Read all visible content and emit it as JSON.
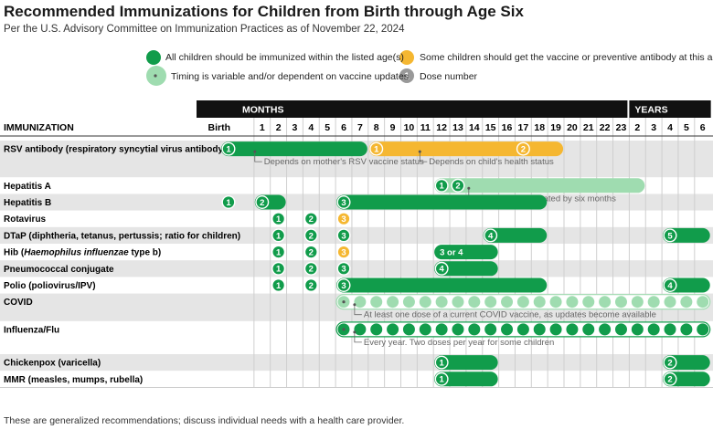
{
  "title": "Recommended Immunizations for Children from Birth through Age Six",
  "subtitle": "Per the U.S. Advisory Committee on Immunization Practices as of November 22, 2024",
  "legend": {
    "all_children": "All children should be immunized within the listed age(s)",
    "some_children": "Some children should get the vaccine or preventive antibody at this age",
    "variable_timing": "Timing is variable and/or dependent on vaccine updates",
    "dose_number": "Dose number",
    "dose_marker": "1"
  },
  "footnote": "These are generalized recommendations; discuss individual needs with a health care provider.",
  "colors": {
    "green": "#119c4b",
    "light_green": "#9fdcb0",
    "orange": "#f5b731",
    "dark": "#111111",
    "band": "#e5e5e5",
    "grid": "#cfcfcf",
    "note": "#666666"
  },
  "chart_data": {
    "type": "table",
    "header": {
      "immunization": "IMMUNIZATION",
      "months": "MONTHS",
      "years": "YEARS"
    },
    "columns": [
      "Birth",
      "1",
      "2",
      "3",
      "4",
      "5",
      "6",
      "7",
      "8",
      "9",
      "10",
      "11",
      "12",
      "13",
      "14",
      "15",
      "16",
      "17",
      "18",
      "19",
      "20",
      "21",
      "22",
      "23",
      "2",
      "3",
      "4",
      "5",
      "6"
    ],
    "rows": [
      {
        "label": "RSV antibody (respiratory syncytial virus antibody)",
        "bars": [
          {
            "from": 0,
            "to": 7,
            "style": "green"
          },
          {
            "from": 8,
            "to": 19,
            "style": "orange"
          }
        ],
        "doses": [
          {
            "col": 0,
            "label": "1",
            "style": "green"
          },
          {
            "col": 8,
            "label": "1",
            "style": "orange"
          },
          {
            "col": 17,
            "label": "2",
            "style": "orange"
          }
        ],
        "notes": [
          {
            "col": 1,
            "text": "Depends on mother's RSV vaccine status"
          },
          {
            "col": 11,
            "text": "Depends on child's health status"
          }
        ]
      },
      {
        "label": "Hepatitis A",
        "bars": [
          {
            "from": 12,
            "to": 24,
            "style": "light"
          }
        ],
        "doses": [
          {
            "col": 12,
            "label": "1",
            "style": "green"
          },
          {
            "col": 13,
            "label": "2",
            "style": "green"
          }
        ],
        "notes": [
          {
            "col": 14,
            "text": "Two doses separated by six months"
          }
        ]
      },
      {
        "label": "Hepatitis B",
        "bars": [
          {
            "from": 1,
            "to": 2,
            "style": "green"
          },
          {
            "from": 6,
            "to": 18,
            "style": "green"
          }
        ],
        "doses": [
          {
            "col": 0,
            "label": "1",
            "style": "green"
          },
          {
            "col": 1,
            "label": "2",
            "style": "green"
          },
          {
            "col": 6,
            "label": "3",
            "style": "green"
          }
        ]
      },
      {
        "label": "Rotavirus",
        "bars": [],
        "doses": [
          {
            "col": 2,
            "label": "1",
            "style": "green"
          },
          {
            "col": 4,
            "label": "2",
            "style": "green"
          },
          {
            "col": 6,
            "label": "3",
            "style": "orange"
          }
        ]
      },
      {
        "label": "DTaP (diphtheria, tetanus, pertussis; ratio for children)",
        "bars": [
          {
            "from": 15,
            "to": 18,
            "style": "green"
          },
          {
            "from": 26,
            "to": 28,
            "style": "green"
          }
        ],
        "doses": [
          {
            "col": 2,
            "label": "1",
            "style": "green"
          },
          {
            "col": 4,
            "label": "2",
            "style": "green"
          },
          {
            "col": 6,
            "label": "3",
            "style": "green"
          },
          {
            "col": 15,
            "label": "4",
            "style": "green"
          },
          {
            "col": 26,
            "label": "5",
            "style": "green"
          }
        ]
      },
      {
        "label": "Hib (Haemophilus influenzae type b)",
        "label_parts": {
          "before": "Hib (",
          "italic": "Haemophilus influenzae",
          "after": " type b)"
        },
        "bars": [
          {
            "from": 12,
            "to": 15,
            "style": "green"
          }
        ],
        "doses": [
          {
            "col": 2,
            "label": "1",
            "style": "green"
          },
          {
            "col": 4,
            "label": "2",
            "style": "green"
          },
          {
            "col": 6,
            "label": "3",
            "style": "orange"
          },
          {
            "col": 12,
            "label": "3 or 4",
            "style": "green"
          }
        ]
      },
      {
        "label": "Pneumococcal conjugate",
        "bars": [
          {
            "from": 12,
            "to": 15,
            "style": "green"
          }
        ],
        "doses": [
          {
            "col": 2,
            "label": "1",
            "style": "green"
          },
          {
            "col": 4,
            "label": "2",
            "style": "green"
          },
          {
            "col": 6,
            "label": "3",
            "style": "green"
          },
          {
            "col": 12,
            "label": "4",
            "style": "green"
          }
        ]
      },
      {
        "label": "Polio (poliovirus/IPV)",
        "bars": [
          {
            "from": 6,
            "to": 18,
            "style": "green"
          },
          {
            "from": 26,
            "to": 28,
            "style": "green"
          }
        ],
        "doses": [
          {
            "col": 2,
            "label": "1",
            "style": "green"
          },
          {
            "col": 4,
            "label": "2",
            "style": "green"
          },
          {
            "col": 6,
            "label": "3",
            "style": "green"
          },
          {
            "col": 26,
            "label": "4",
            "style": "green"
          }
        ]
      },
      {
        "label": "COVID",
        "bars": [
          {
            "from": 6,
            "to": 28,
            "style": "light_outline",
            "dots": "light"
          }
        ],
        "doses": [],
        "notes": [
          {
            "col": 7,
            "text": "At least one dose of a current COVID vaccine, as updates become available"
          }
        ]
      },
      {
        "label": "Influenza/Flu",
        "bars": [
          {
            "from": 6,
            "to": 28,
            "style": "white_outline",
            "dots": "green"
          }
        ],
        "doses": [],
        "notes": [
          {
            "col": 7,
            "text": "Every year. Two doses per year for some children"
          }
        ]
      },
      {
        "label": "Chickenpox (varicella)",
        "bars": [
          {
            "from": 12,
            "to": 15,
            "style": "green"
          },
          {
            "from": 26,
            "to": 28,
            "style": "green"
          }
        ],
        "doses": [
          {
            "col": 12,
            "label": "1",
            "style": "green"
          },
          {
            "col": 26,
            "label": "2",
            "style": "green"
          }
        ]
      },
      {
        "label": "MMR (measles, mumps, rubella)",
        "bars": [
          {
            "from": 12,
            "to": 15,
            "style": "green"
          },
          {
            "from": 26,
            "to": 28,
            "style": "green"
          }
        ],
        "doses": [
          {
            "col": 12,
            "label": "1",
            "style": "green"
          },
          {
            "col": 26,
            "label": "2",
            "style": "green"
          }
        ]
      }
    ]
  }
}
